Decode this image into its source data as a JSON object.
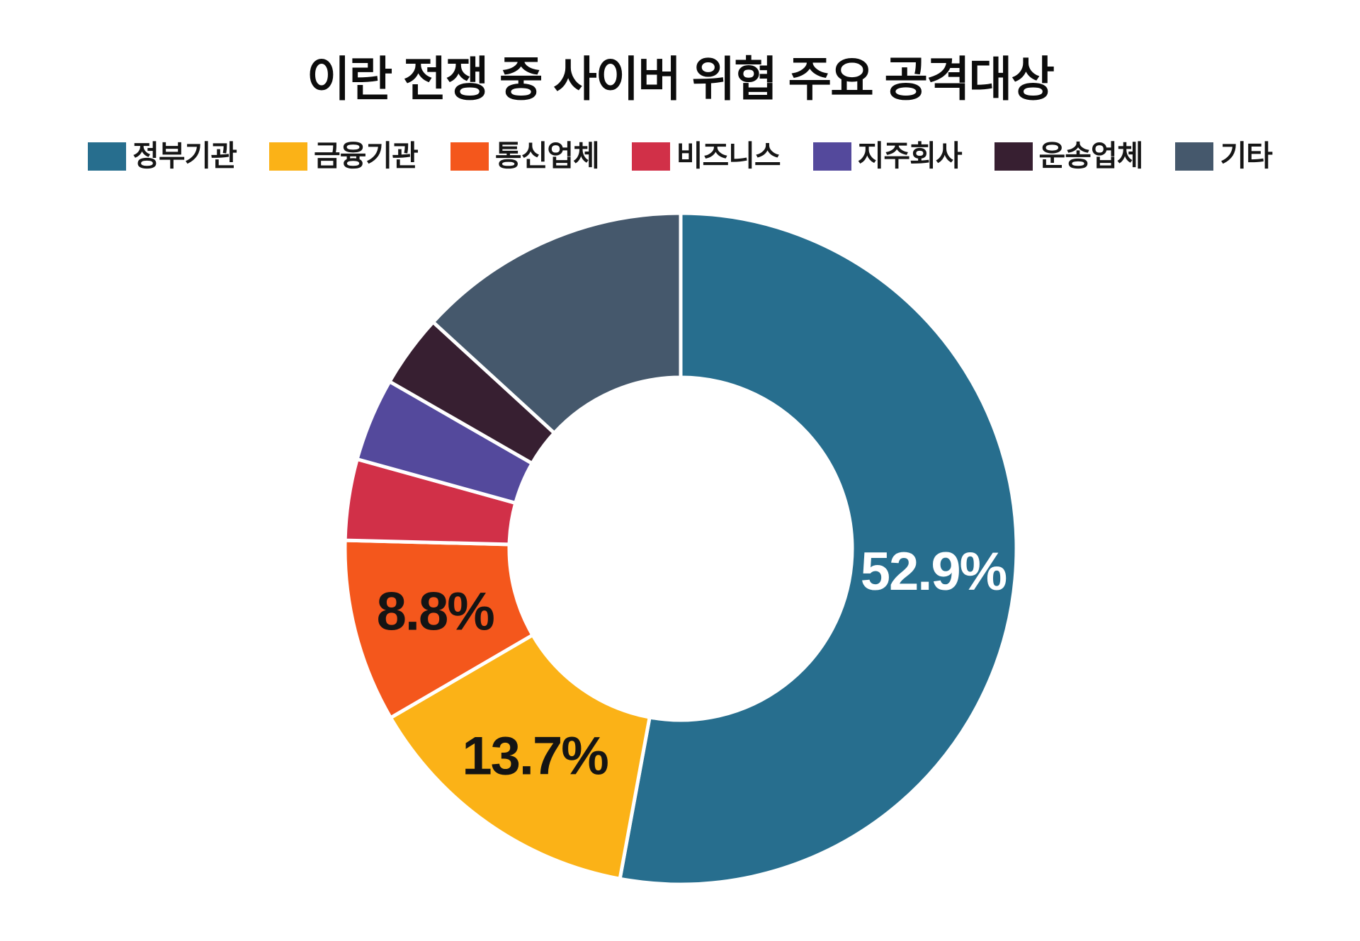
{
  "chart_data": {
    "type": "donut",
    "title": "이란 전쟁 중 사이버 위협 주요 공격대상",
    "legend_position": "top",
    "direction": "clockwise",
    "start_angle_deg": 0,
    "inner_radius_ratio": 0.51,
    "slice_gap_color": "#ffffff",
    "series": [
      {
        "label": "정부기관",
        "value": 52.9,
        "color": "#276e8e",
        "data_label": "52.9%",
        "data_label_color": "#ffffff"
      },
      {
        "label": "금융기관",
        "value": 13.7,
        "color": "#fbb217",
        "data_label": "13.7%",
        "data_label_color": "#141414"
      },
      {
        "label": "통신업체",
        "value": 8.8,
        "color": "#f4571c",
        "data_label": "8.8%",
        "data_label_color": "#141414"
      },
      {
        "label": "비즈니스",
        "value": 3.9,
        "color": "#d13048",
        "data_label": null,
        "data_label_color": null
      },
      {
        "label": "지주회사",
        "value": 4.0,
        "color": "#54499c",
        "data_label": null,
        "data_label_color": null
      },
      {
        "label": "운송업체",
        "value": 3.5,
        "color": "#371f31",
        "data_label": null,
        "data_label_color": null
      },
      {
        "label": "기타",
        "value": 13.2,
        "color": "#45586c",
        "data_label": null,
        "data_label_color": null
      }
    ]
  }
}
